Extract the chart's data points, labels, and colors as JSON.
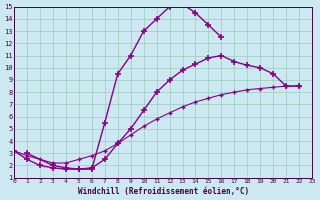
{
  "xlabel": "Windchill (Refroidissement éolien,°C)",
  "xlim": [
    0,
    23
  ],
  "ylim": [
    1,
    15
  ],
  "xticks": [
    0,
    1,
    2,
    3,
    4,
    5,
    6,
    7,
    8,
    9,
    10,
    11,
    12,
    13,
    14,
    15,
    16,
    17,
    18,
    19,
    20,
    21,
    22,
    23
  ],
  "yticks": [
    1,
    2,
    3,
    4,
    5,
    6,
    7,
    8,
    9,
    10,
    11,
    12,
    13,
    14,
    15
  ],
  "bg_color": "#cce8f0",
  "grid_color": "#99ccbb",
  "line_color": "#880088",
  "line1_x": [
    1,
    3,
    4,
    5,
    6,
    7,
    8,
    9,
    10,
    11,
    12,
    13,
    14,
    15,
    16
  ],
  "line1_y": [
    3.0,
    2.0,
    1.8,
    1.7,
    1.7,
    5.5,
    9.5,
    11.0,
    13.0,
    14.0,
    15.0,
    15.2,
    14.5,
    13.5,
    12.5
  ],
  "line2_x": [
    0,
    1,
    2,
    3,
    4,
    5,
    6,
    7,
    8,
    9,
    10,
    11,
    12,
    13,
    14,
    15,
    16,
    17,
    18,
    19,
    20,
    21,
    22
  ],
  "line2_y": [
    3.2,
    2.5,
    2.0,
    1.8,
    1.7,
    1.7,
    1.8,
    2.5,
    3.8,
    5.0,
    6.5,
    8.0,
    9.0,
    9.8,
    10.3,
    10.8,
    11.0,
    10.5,
    10.2,
    10.0,
    9.5,
    8.5,
    8.5
  ],
  "line3_x": [
    0,
    1,
    2,
    3,
    4,
    5,
    6,
    7,
    8,
    9,
    10,
    11,
    12,
    13,
    14,
    15,
    16,
    17,
    18,
    19,
    20,
    21,
    22
  ],
  "line3_y": [
    3.2,
    2.8,
    2.5,
    2.2,
    2.2,
    2.5,
    2.8,
    3.2,
    3.8,
    4.5,
    5.2,
    5.8,
    6.3,
    6.8,
    7.2,
    7.5,
    7.8,
    8.0,
    8.2,
    8.3,
    8.4,
    8.5,
    8.5
  ]
}
